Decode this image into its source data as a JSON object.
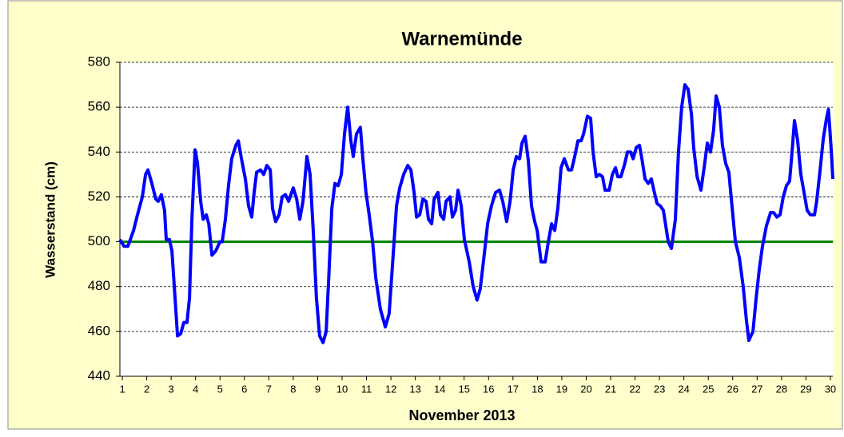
{
  "chart_data": {
    "type": "line",
    "title": "Warnemünde",
    "xlabel": "November 2013",
    "ylabel": "Wasserstand (cm)",
    "xlim": [
      0.9,
      30.1
    ],
    "ylim": [
      440,
      580
    ],
    "xticks": [
      1,
      2,
      3,
      4,
      5,
      6,
      7,
      8,
      9,
      10,
      11,
      12,
      13,
      14,
      15,
      16,
      17,
      18,
      19,
      20,
      21,
      22,
      23,
      24,
      25,
      26,
      27,
      28,
      29,
      30
    ],
    "yticks": [
      440,
      460,
      480,
      500,
      520,
      540,
      560,
      580
    ],
    "grid": true,
    "series": [
      {
        "color": "#0000ff",
        "x": [
          0.9,
          1.07,
          1.23,
          1.46,
          1.62,
          1.82,
          1.95,
          2.05,
          2.21,
          2.37,
          2.47,
          2.6,
          2.73,
          2.8,
          2.93,
          3.03,
          3.16,
          3.26,
          3.39,
          3.52,
          3.65,
          3.75,
          3.85,
          3.98,
          4.08,
          4.21,
          4.31,
          4.44,
          4.54,
          4.67,
          4.83,
          5.0,
          5.09,
          5.22,
          5.35,
          5.48,
          5.65,
          5.75,
          5.88,
          6.04,
          6.17,
          6.3,
          6.4,
          6.5,
          6.66,
          6.79,
          6.92,
          7.06,
          7.15,
          7.28,
          7.42,
          7.55,
          7.68,
          7.81,
          8.0,
          8.14,
          8.27,
          8.4,
          8.56,
          8.69,
          8.82,
          8.95,
          9.08,
          9.22,
          9.35,
          9.45,
          9.58,
          9.71,
          9.84,
          9.97,
          10.1,
          10.23,
          10.36,
          10.46,
          10.59,
          10.75,
          10.85,
          10.98,
          11.11,
          11.25,
          11.38,
          11.57,
          11.77,
          11.93,
          12.1,
          12.23,
          12.36,
          12.52,
          12.69,
          12.82,
          12.95,
          13.05,
          13.18,
          13.31,
          13.44,
          13.54,
          13.67,
          13.77,
          13.93,
          14.03,
          14.16,
          14.26,
          14.42,
          14.52,
          14.65,
          14.75,
          14.88,
          15.01,
          15.21,
          15.37,
          15.53,
          15.66,
          15.83,
          15.96,
          16.12,
          16.29,
          16.45,
          16.58,
          16.74,
          16.88,
          17.01,
          17.14,
          17.27,
          17.37,
          17.5,
          17.63,
          17.76,
          17.89,
          17.99,
          18.15,
          18.32,
          18.45,
          18.58,
          18.71,
          18.84,
          18.97,
          19.1,
          19.27,
          19.4,
          19.53,
          19.66,
          19.79,
          19.89,
          20.05,
          20.18,
          20.28,
          20.41,
          20.54,
          20.67,
          20.77,
          20.94,
          21.07,
          21.2,
          21.29,
          21.42,
          21.56,
          21.69,
          21.82,
          21.92,
          22.05,
          22.18,
          22.28,
          22.41,
          22.54,
          22.67,
          22.77,
          22.9,
          23.03,
          23.16,
          23.36,
          23.49,
          23.65,
          23.78,
          23.91,
          24.04,
          24.17,
          24.31,
          24.4,
          24.54,
          24.7,
          24.83,
          24.96,
          25.09,
          25.22,
          25.32,
          25.45,
          25.58,
          25.71,
          25.84,
          25.98,
          26.11,
          26.27,
          26.43,
          26.56,
          26.66,
          26.83,
          26.96,
          27.09,
          27.22,
          27.38,
          27.55,
          27.68,
          27.81,
          27.94,
          28.07,
          28.2,
          28.33,
          28.43,
          28.53,
          28.66,
          28.79,
          28.92,
          29.05,
          29.18,
          29.35,
          29.44,
          29.58,
          29.71,
          29.84,
          29.92,
          29.98,
          30.04,
          30.1
        ],
        "values": [
          501,
          498,
          498,
          505,
          512,
          520,
          530,
          532,
          526,
          519,
          518,
          521,
          514,
          501,
          501,
          496,
          475,
          458,
          459,
          464,
          464,
          475,
          510,
          541,
          535,
          518,
          510,
          512,
          508,
          494,
          496,
          500,
          500,
          510,
          525,
          537,
          543,
          545,
          537,
          528,
          516,
          511,
          522,
          531,
          532,
          530,
          534,
          532,
          515,
          509,
          512,
          520,
          521,
          518,
          524,
          519,
          510,
          518,
          538,
          530,
          505,
          475,
          458,
          455,
          460,
          483,
          515,
          526,
          525,
          530,
          548,
          560,
          545,
          538,
          548,
          551,
          537,
          522,
          512,
          500,
          484,
          470,
          462,
          468,
          495,
          516,
          524,
          530,
          534,
          532,
          522,
          511,
          512,
          519,
          518,
          510,
          508,
          519,
          522,
          512,
          510,
          518,
          520,
          511,
          514,
          523,
          516,
          501,
          491,
          480,
          474,
          479,
          495,
          508,
          516,
          522,
          523,
          518,
          509,
          518,
          532,
          538,
          537,
          544,
          547,
          536,
          516,
          509,
          505,
          491,
          491,
          500,
          508,
          505,
          515,
          533,
          537,
          532,
          532,
          538,
          545,
          545,
          548,
          556,
          555,
          540,
          529,
          530,
          529,
          523,
          523,
          530,
          533,
          529,
          529,
          534,
          540,
          540,
          537,
          542,
          543,
          537,
          528,
          526,
          528,
          523,
          517,
          516,
          514,
          500,
          497,
          510,
          540,
          560,
          570,
          568,
          557,
          542,
          529,
          523,
          533,
          544,
          540,
          550,
          565,
          560,
          543,
          535,
          531,
          515,
          500,
          493,
          480,
          465,
          456,
          460,
          475,
          488,
          498,
          507,
          513,
          513,
          511,
          512,
          520,
          525,
          527,
          540,
          554,
          545,
          530,
          522,
          514,
          512,
          512,
          518,
          532,
          546,
          555,
          559,
          550,
          540,
          528
        ]
      },
      {
        "color": "#008000",
        "x": [
          0.9,
          30.1
        ],
        "values": [
          500,
          500
        ]
      }
    ]
  }
}
